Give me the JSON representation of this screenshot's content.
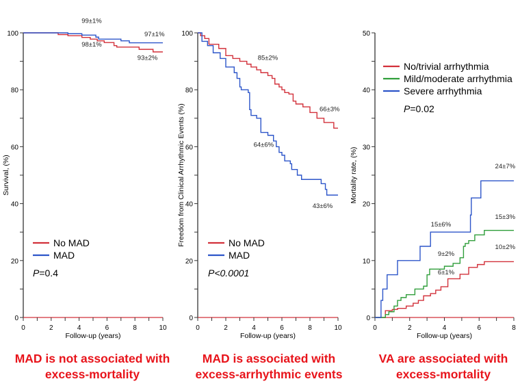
{
  "chart_data": [
    {
      "type": "line",
      "step": true,
      "xlabel": "Follow-up (years)",
      "ylabel": "Survival, (%)",
      "xlim": [
        0,
        10
      ],
      "ylim": [
        0,
        100
      ],
      "xticks": [
        0,
        2,
        4,
        6,
        8,
        10
      ],
      "yticks": [
        0,
        20,
        40,
        60,
        80,
        100
      ],
      "legend_position": "center-left",
      "pvalue_prefix": "P",
      "pvalue_text": "=0.4",
      "pvalue_italic_all": false,
      "series": [
        {
          "name": "No MAD",
          "color": "#d2303a",
          "points": [
            [
              0,
              100
            ],
            [
              2.5,
              99.4
            ],
            [
              3.2,
              99.0
            ],
            [
              4.2,
              98.4
            ],
            [
              4.8,
              97.8
            ],
            [
              5.3,
              97.2
            ],
            [
              5.8,
              96.6
            ],
            [
              6.5,
              95.5
            ],
            [
              6.7,
              95
            ],
            [
              8.3,
              94.2
            ],
            [
              9.3,
              93.3
            ],
            [
              10,
              93.3
            ]
          ]
        },
        {
          "name": "MAD",
          "color": "#2c55c9",
          "points": [
            [
              0,
              100
            ],
            [
              3.2,
              99.7
            ],
            [
              4.2,
              99.2
            ],
            [
              5.2,
              98.5
            ],
            [
              5.4,
              97.8
            ],
            [
              7,
              97.2
            ],
            [
              7.6,
              96.5
            ],
            [
              10,
              96.5
            ]
          ]
        }
      ],
      "annotations": [
        {
          "text": "99±1%",
          "x": 4.9,
          "y": 103.5
        },
        {
          "text": "98±1%",
          "x": 4.9,
          "y": 95.2
        },
        {
          "text": "97±1%",
          "x": 9.4,
          "y": 98.8
        },
        {
          "text": "93±2%",
          "x": 8.9,
          "y": 90.5
        }
      ],
      "caption": [
        "MAD is not associated with",
        "excess-mortality"
      ]
    },
    {
      "type": "line",
      "step": true,
      "xlabel": "Follow-up (years)",
      "ylabel": "Freedom  from Clinical Arrhythmic Events (%)",
      "xlim": [
        0,
        10
      ],
      "ylim": [
        0,
        100
      ],
      "xticks": [
        0,
        2,
        4,
        6,
        8,
        10
      ],
      "yticks": [
        0,
        20,
        40,
        60,
        80,
        100
      ],
      "legend_position": "center-left",
      "pvalue_prefix": "P",
      "pvalue_text": "<0.0001",
      "pvalue_italic_all": true,
      "series": [
        {
          "name": "No MAD",
          "color": "#d2303a",
          "points": [
            [
              0,
              100
            ],
            [
              0.2,
              99
            ],
            [
              0.5,
              98
            ],
            [
              0.8,
              96
            ],
            [
              1.5,
              94.5
            ],
            [
              2,
              92
            ],
            [
              2.5,
              91
            ],
            [
              3,
              90
            ],
            [
              3.5,
              89
            ],
            [
              3.8,
              88
            ],
            [
              4.2,
              87
            ],
            [
              4.5,
              86
            ],
            [
              5,
              85
            ],
            [
              5.3,
              84
            ],
            [
              5.5,
              82
            ],
            [
              5.8,
              81
            ],
            [
              6,
              80
            ],
            [
              6.2,
              79
            ],
            [
              6.5,
              78.5
            ],
            [
              6.8,
              76
            ],
            [
              7,
              75
            ],
            [
              7.5,
              74
            ],
            [
              8,
              72
            ],
            [
              8.5,
              70
            ],
            [
              9,
              68.5
            ],
            [
              9.7,
              66.5
            ],
            [
              10,
              66.5
            ]
          ]
        },
        {
          "name": "MAD",
          "color": "#2c55c9",
          "points": [
            [
              0,
              100
            ],
            [
              0.3,
              97
            ],
            [
              0.7,
              95.5
            ],
            [
              1.1,
              93
            ],
            [
              1.6,
              91
            ],
            [
              2,
              88
            ],
            [
              2.6,
              86
            ],
            [
              2.8,
              84
            ],
            [
              3,
              81
            ],
            [
              3.1,
              80
            ],
            [
              3.6,
              79
            ],
            [
              3.7,
              73
            ],
            [
              3.8,
              71
            ],
            [
              4.2,
              70
            ],
            [
              4.5,
              65
            ],
            [
              5,
              64
            ],
            [
              5.4,
              62
            ],
            [
              5.6,
              60
            ],
            [
              5.8,
              58
            ],
            [
              6,
              57
            ],
            [
              6.2,
              55
            ],
            [
              6.6,
              54
            ],
            [
              6.7,
              52
            ],
            [
              7.1,
              50
            ],
            [
              7.4,
              48.5
            ],
            [
              8.8,
              47
            ],
            [
              9.1,
              45
            ],
            [
              9.2,
              43
            ],
            [
              10,
              43
            ]
          ]
        }
      ],
      "annotations": [
        {
          "text": "85±2%",
          "x": 5,
          "y": 90.5
        },
        {
          "text": "66±3%",
          "x": 9.4,
          "y": 72.5
        },
        {
          "text": "64±6%",
          "x": 4.7,
          "y": 60
        },
        {
          "text": "43±6%",
          "x": 8.9,
          "y": 38.5
        }
      ],
      "caption": [
        "MAD is associated with",
        "excess-arrhythmic events"
      ]
    },
    {
      "type": "line",
      "step": true,
      "xlabel": "Follow-up (years)",
      "ylabel": "Mortality rate, (%)",
      "xlim": [
        0,
        8
      ],
      "ylim": [
        0,
        50
      ],
      "xticks": [
        0,
        2,
        4,
        6,
        8
      ],
      "yticks": [
        0,
        10,
        20,
        30,
        40,
        50
      ],
      "legend_position": "top-left",
      "pvalue_prefix": "P",
      "pvalue_text": "=0.02",
      "pvalue_italic_all": false,
      "series": [
        {
          "name": "No/trivial arrhythmia",
          "color": "#d2303a",
          "points": [
            [
              0,
              0
            ],
            [
              0.6,
              1.2
            ],
            [
              1,
              1.4
            ],
            [
              1.3,
              1.6
            ],
            [
              1.8,
              2
            ],
            [
              2.2,
              2.5
            ],
            [
              2.5,
              3
            ],
            [
              2.8,
              3.8
            ],
            [
              3.2,
              4.2
            ],
            [
              3.5,
              4.8
            ],
            [
              3.8,
              5.4
            ],
            [
              4.2,
              6.8
            ],
            [
              4.9,
              7.6
            ],
            [
              5.4,
              8.8
            ],
            [
              5.9,
              9.3
            ],
            [
              6.3,
              9.8
            ],
            [
              8,
              9.8
            ]
          ]
        },
        {
          "name": "Mild/moderate arrhythmia",
          "color": "#2f9e3a",
          "points": [
            [
              0,
              0
            ],
            [
              0.6,
              0.5
            ],
            [
              0.8,
              1
            ],
            [
              1.1,
              2
            ],
            [
              1.3,
              3
            ],
            [
              1.5,
              3.5
            ],
            [
              1.8,
              4
            ],
            [
              2.3,
              5
            ],
            [
              2.8,
              5.5
            ],
            [
              3,
              7.5
            ],
            [
              3.15,
              8.5
            ],
            [
              4,
              9
            ],
            [
              4.5,
              9.5
            ],
            [
              4.9,
              10.5
            ],
            [
              5.1,
              12.5
            ],
            [
              5.2,
              13
            ],
            [
              5.4,
              13.5
            ],
            [
              5.75,
              14.5
            ],
            [
              6.3,
              15.3
            ],
            [
              8,
              15.3
            ]
          ]
        },
        {
          "name": "Severe arrhythmia",
          "color": "#2c55c9",
          "points": [
            [
              0,
              0
            ],
            [
              0.35,
              3
            ],
            [
              0.45,
              5
            ],
            [
              0.7,
              7.5
            ],
            [
              1.3,
              10
            ],
            [
              2.6,
              12.5
            ],
            [
              3.2,
              15
            ],
            [
              5.5,
              18
            ],
            [
              5.55,
              21
            ],
            [
              6.1,
              24
            ],
            [
              8,
              24
            ]
          ]
        }
      ],
      "annotations": [
        {
          "text": "24±7%",
          "x": 7.5,
          "y": 26.2
        },
        {
          "text": "15±6%",
          "x": 3.8,
          "y": 16
        },
        {
          "text": "15±3%",
          "x": 7.5,
          "y": 17.3
        },
        {
          "text": "9±2%",
          "x": 4.1,
          "y": 10.8
        },
        {
          "text": "6±1%",
          "x": 4.1,
          "y": 7.6
        },
        {
          "text": "10±2%",
          "x": 7.5,
          "y": 12
        }
      ],
      "caption": [
        "VA are associated with",
        "excess-mortality"
      ]
    }
  ]
}
